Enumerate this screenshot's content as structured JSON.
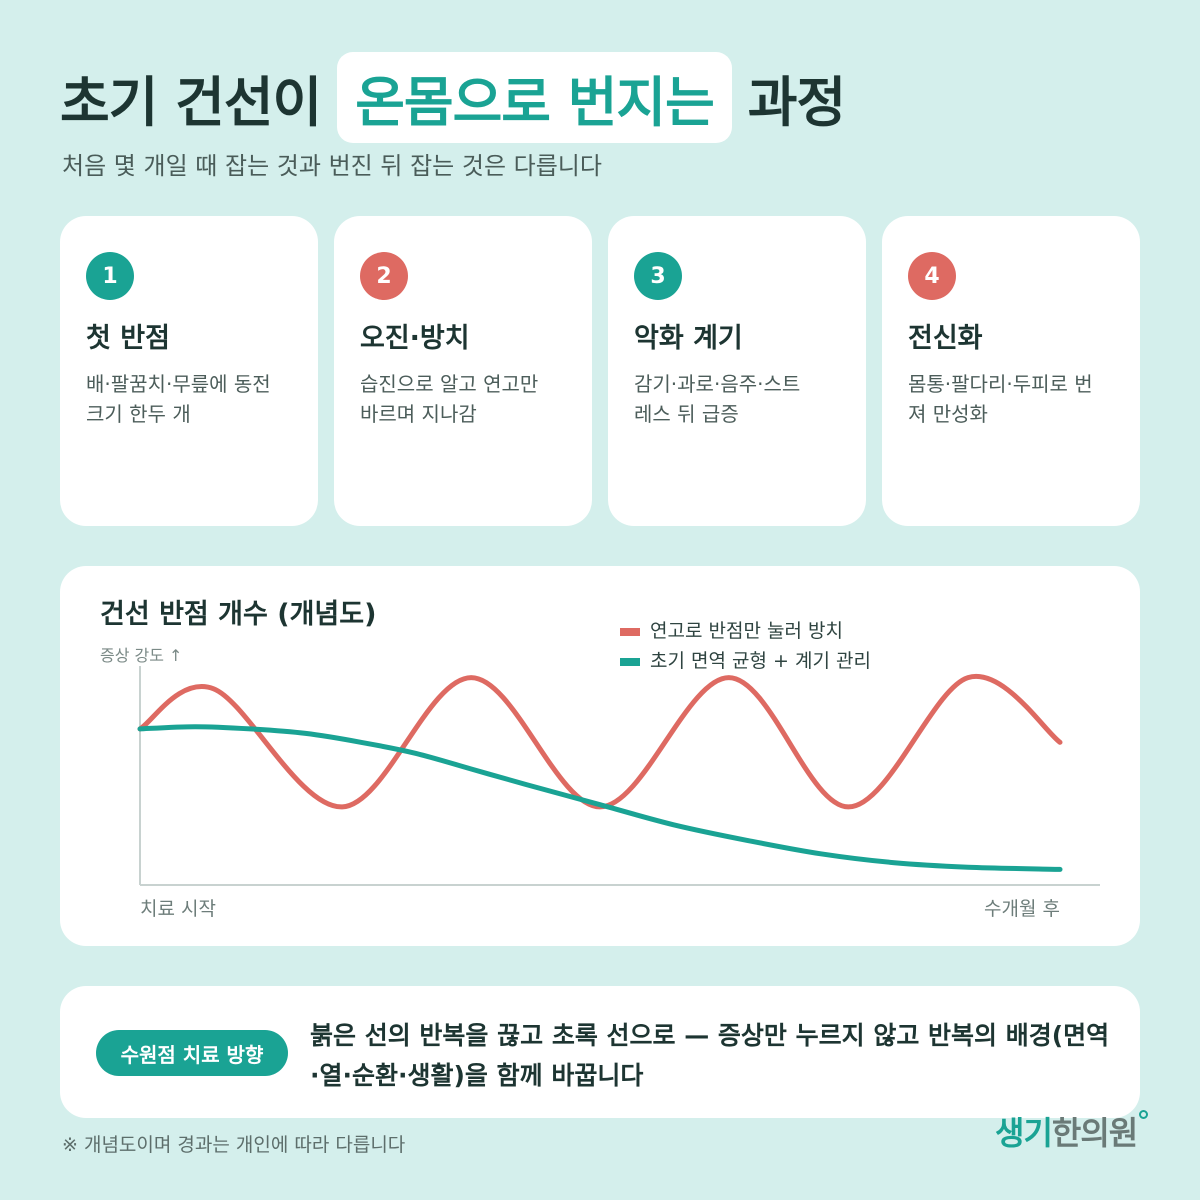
{
  "header": {
    "title_part1": "초기 건선이",
    "title_highlight": "온몸으로 번지는",
    "title_part2": "과정",
    "subtitle": "처음 몇 개일 때 잡는 것과 번진 뒤 잡는 것은 다릅니다"
  },
  "cards": [
    {
      "number": "1",
      "title": "첫 반점",
      "desc_line1": "배·팔꿈치·무릎에 동전",
      "desc_line2": "크기 한두 개",
      "color": "#1aa394"
    },
    {
      "number": "2",
      "title": "오진·방치",
      "desc_line1": "습진으로 알고 연고만",
      "desc_line2": "바르며 지나감",
      "color": "#de6a62"
    },
    {
      "number": "3",
      "title": "악화 계기",
      "desc_line1": "감기·과로·음주·스트",
      "desc_line2": "레스 뒤 급증",
      "color": "#1aa394"
    },
    {
      "number": "4",
      "title": "전신화",
      "desc_line1": "몸통·팔다리·두피로 번",
      "desc_line2": "져 만성화",
      "color": "#de6a62"
    }
  ],
  "chart_data": {
    "type": "line",
    "title": "건선 반점 개수 (개념도)",
    "ylabel": "증상 강도 ↑",
    "x_start_label": "치료 시작",
    "x_end_label": "수개월 후",
    "xlim": [
      0,
      1
    ],
    "ylim": [
      0,
      1
    ],
    "grid": false,
    "legend_position": "top-right",
    "series": [
      {
        "name": "연고로 반점만 눌러 방치",
        "color": "#de6a62",
        "x": [
          0,
          0.08,
          0.22,
          0.36,
          0.5,
          0.64,
          0.77,
          0.9,
          1.0
        ],
        "values": [
          0.7,
          0.88,
          0.35,
          0.93,
          0.35,
          0.93,
          0.35,
          0.93,
          0.64
        ]
      },
      {
        "name": "초기 면역 균형 + 계기 관리",
        "color": "#1aa394",
        "x": [
          0,
          0.06,
          0.12,
          0.18,
          0.24,
          0.3,
          0.36,
          0.42,
          0.5,
          0.58,
          0.66,
          0.74,
          0.82,
          0.9,
          1.0
        ],
        "values": [
          0.7,
          0.71,
          0.7,
          0.68,
          0.64,
          0.59,
          0.52,
          0.45,
          0.36,
          0.27,
          0.2,
          0.14,
          0.1,
          0.08,
          0.07
        ]
      }
    ]
  },
  "direction": {
    "badge": "수원점 치료 방향",
    "text": "붉은 선의 반복을 끊고 초록 선으로 — 증상만 누르지 않고 반복의 배경(면역·열·순환·생활)을 함께 바꿉니다"
  },
  "footnote": "※ 개념도이며 경과는 개인에 따라 다릅니다",
  "logo": {
    "part1": "생기",
    "part2": "한의원"
  }
}
